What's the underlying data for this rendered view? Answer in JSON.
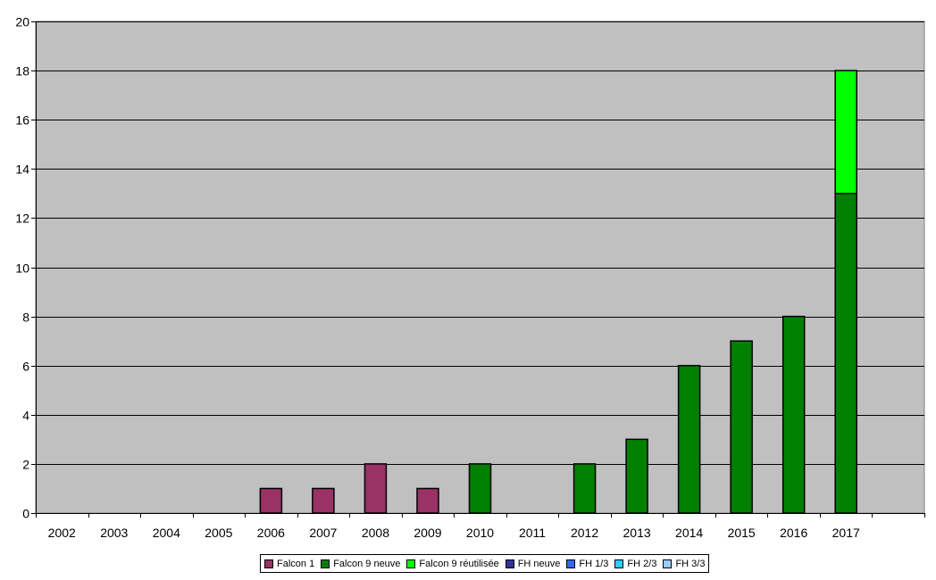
{
  "chart_data": {
    "type": "bar",
    "stacked": true,
    "title": "",
    "xlabel": "",
    "ylabel": "",
    "ylim": [
      0,
      20
    ],
    "yticks": [
      0,
      2,
      4,
      6,
      8,
      10,
      12,
      14,
      16,
      18,
      20
    ],
    "grid": true,
    "legend_position": "bottom",
    "plot_background": "#c0c0c0",
    "categories": [
      "2002",
      "2003",
      "2004",
      "2005",
      "2006",
      "2007",
      "2008",
      "2009",
      "2010",
      "2011",
      "2012",
      "2013",
      "2014",
      "2015",
      "2016",
      "2017"
    ],
    "series": [
      {
        "name": "Falcon 1",
        "color": "#993366",
        "values": [
          0,
          0,
          0,
          0,
          1,
          1,
          2,
          1,
          0,
          0,
          0,
          0,
          0,
          0,
          0,
          0
        ]
      },
      {
        "name": "Falcon 9 neuve",
        "color": "#008000",
        "values": [
          0,
          0,
          0,
          0,
          0,
          0,
          0,
          0,
          2,
          0,
          2,
          3,
          6,
          7,
          8,
          13
        ]
      },
      {
        "name": "Falcon 9 réutilisée",
        "color": "#00ff00",
        "values": [
          0,
          0,
          0,
          0,
          0,
          0,
          0,
          0,
          0,
          0,
          0,
          0,
          0,
          0,
          0,
          5
        ]
      },
      {
        "name": "FH neuve",
        "color": "#333399",
        "values": [
          0,
          0,
          0,
          0,
          0,
          0,
          0,
          0,
          0,
          0,
          0,
          0,
          0,
          0,
          0,
          0
        ]
      },
      {
        "name": "FH 1/3",
        "color": "#3366ff",
        "values": [
          0,
          0,
          0,
          0,
          0,
          0,
          0,
          0,
          0,
          0,
          0,
          0,
          0,
          0,
          0,
          0
        ]
      },
      {
        "name": "FH 2/3",
        "color": "#33ccff",
        "values": [
          0,
          0,
          0,
          0,
          0,
          0,
          0,
          0,
          0,
          0,
          0,
          0,
          0,
          0,
          0,
          0
        ]
      },
      {
        "name": "FH 3/3",
        "color": "#99ccff",
        "values": [
          0,
          0,
          0,
          0,
          0,
          0,
          0,
          0,
          0,
          0,
          0,
          0,
          0,
          0,
          0,
          0
        ]
      }
    ]
  }
}
